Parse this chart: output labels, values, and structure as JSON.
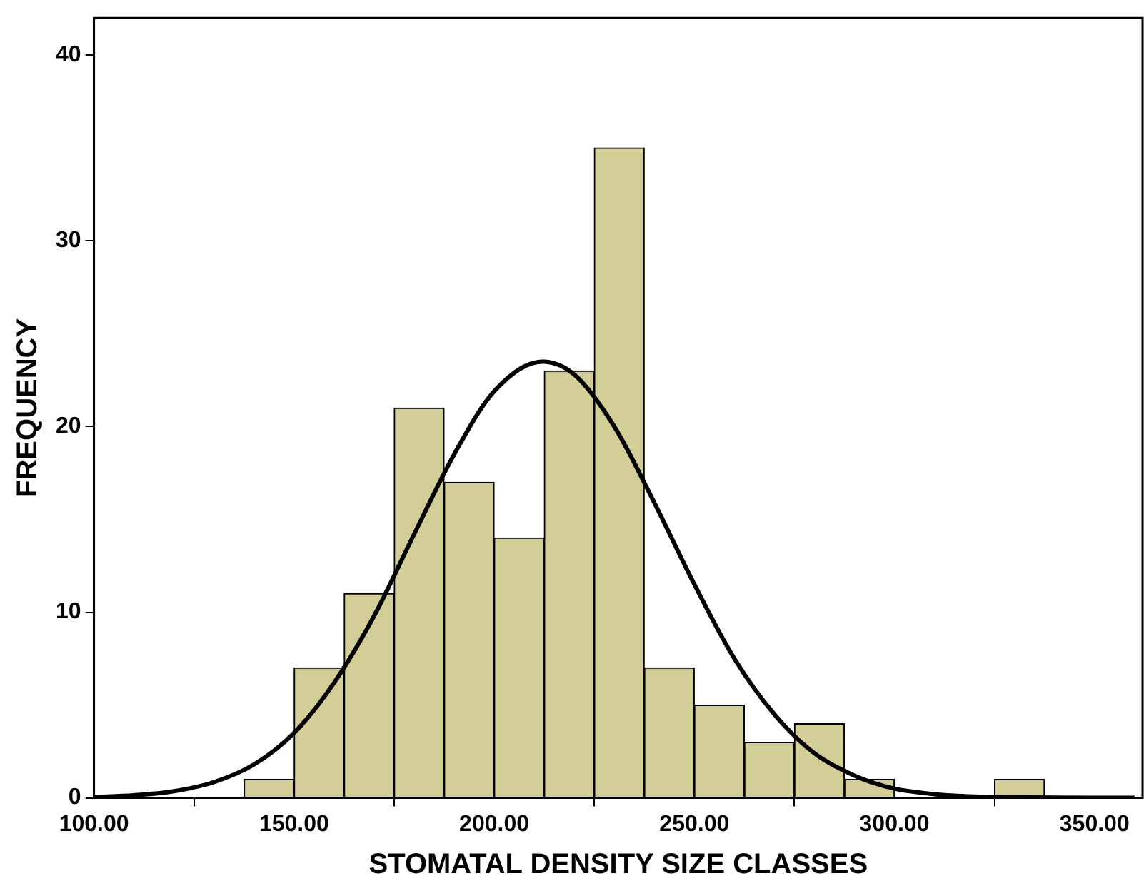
{
  "chart_data": {
    "type": "histogram",
    "xlabel": "STOMATAL DENSITY SIZE CLASSES",
    "ylabel": "FREQUENCY",
    "bins": [
      137.5,
      150,
      162.5,
      175,
      187.5,
      200,
      212.5,
      225,
      237.5,
      250,
      262.5,
      275,
      287.5,
      300,
      312.5,
      325,
      337.5
    ],
    "values": [
      1,
      7,
      11,
      21,
      17,
      14,
      23,
      35,
      7,
      5,
      3,
      4,
      1,
      0,
      0,
      1
    ],
    "color": "#d3cd98",
    "series": [
      {
        "type": "line",
        "color": "#000000",
        "x": [
          100,
          110,
          120,
          130,
          140,
          150,
          160,
          170,
          180,
          190,
          200,
          212,
          220,
          230,
          240,
          250,
          260,
          270,
          280,
          290,
          300,
          310,
          320,
          330,
          340,
          360
        ],
        "values": [
          0.05,
          0.14,
          0.36,
          0.85,
          1.8,
          3.5,
          6.2,
          9.8,
          14.2,
          18.5,
          21.9,
          23.5,
          22.8,
          20.0,
          15.9,
          11.5,
          7.5,
          4.5,
          2.4,
          1.2,
          0.5,
          0.2,
          0.07,
          0.03,
          0.01,
          0
        ]
      }
    ],
    "xlim": [
      100,
      362
    ],
    "ylim": [
      0,
      42
    ],
    "xticks": [
      {
        "value": 100,
        "label": "100.00"
      },
      {
        "value": 150,
        "label": "150.00"
      },
      {
        "value": 200,
        "label": "200.00"
      },
      {
        "value": 250,
        "label": "250.00"
      },
      {
        "value": 300,
        "label": "300.00"
      },
      {
        "value": 350,
        "label": "350.00"
      }
    ],
    "yticks": [
      0,
      10,
      20,
      30,
      40
    ],
    "grid": false,
    "legend": false,
    "marker": "none",
    "line_style": "solid"
  }
}
